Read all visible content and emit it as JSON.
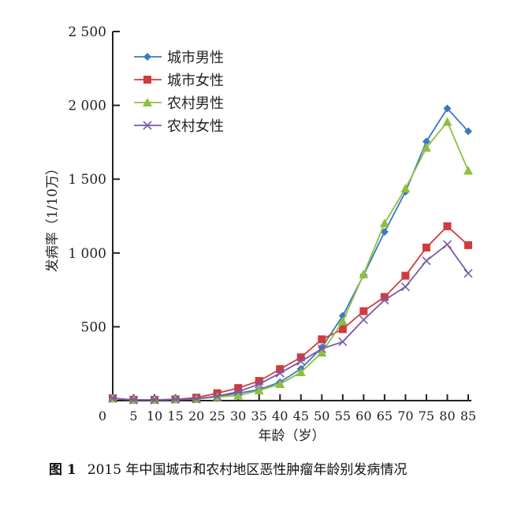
{
  "chart_data": {
    "type": "line",
    "xlabel": "年龄（岁）",
    "ylabel": "发病率（1/10万）",
    "categories": [
      "0",
      "5",
      "10",
      "15",
      "20",
      "25",
      "30",
      "35",
      "40",
      "45",
      "50",
      "55",
      "60",
      "65",
      "70",
      "75",
      "80",
      "85"
    ],
    "ylim": [
      0,
      2500
    ],
    "yticks": [
      0,
      500,
      1000,
      1500,
      2000,
      2500
    ],
    "ytick_labels": [
      "",
      "500",
      "1 000",
      "1 500",
      "2 000",
      "2 500"
    ],
    "xtick_labels": [
      "0",
      "5",
      "10",
      "15",
      "20",
      "25",
      "30",
      "35",
      "40",
      "45",
      "50",
      "55",
      "60",
      "65",
      "70",
      "75",
      "80",
      "85"
    ],
    "legend_position": "top-left",
    "grid": false,
    "series": [
      {
        "name": "城市男性",
        "color": "#3a78c2",
        "marker": "diamond",
        "values": [
          15,
          5,
          5,
          8,
          12,
          30,
          50,
          75,
          125,
          215,
          360,
          574,
          851,
          1143,
          1415,
          1755,
          1979,
          1824
        ]
      },
      {
        "name": "城市女性",
        "color": "#d23b3b",
        "marker": "square",
        "values": [
          15,
          5,
          5,
          8,
          20,
          50,
          85,
          133,
          213,
          293,
          415,
          484,
          606,
          702,
          846,
          1037,
          1181,
          1053
        ]
      },
      {
        "name": "农村男性",
        "color": "#8dbf3e",
        "marker": "triangle",
        "values": [
          15,
          5,
          5,
          8,
          10,
          25,
          35,
          69,
          112,
          192,
          325,
          537,
          856,
          1202,
          1436,
          1713,
          1888,
          1558
        ]
      },
      {
        "name": "农村女性",
        "color": "#7a5aa8",
        "marker": "x",
        "values": [
          15,
          5,
          5,
          8,
          12,
          30,
          60,
          112,
          186,
          266,
          351,
          399,
          548,
          681,
          771,
          947,
          1058,
          862
        ]
      }
    ]
  },
  "caption": {
    "label": "图 1",
    "text": "2015 年中国城市和农村地区恶性肿瘤年龄别发病情况"
  }
}
